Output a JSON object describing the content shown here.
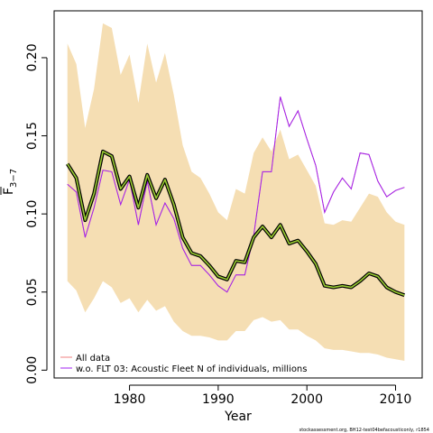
{
  "chart_data": {
    "type": "line",
    "xlabel": "Year",
    "ylabel": "F̄ 3−7",
    "xlim": [
      1971.5,
      2013
    ],
    "ylim": [
      -0.005,
      0.23
    ],
    "xticks": [
      1980,
      1990,
      2000,
      2010
    ],
    "xtick_labels": [
      "1980",
      "1990",
      "2000",
      "2010"
    ],
    "yticks": [
      0.0,
      0.05,
      0.1,
      0.15,
      0.2
    ],
    "ytick_labels": [
      "0.00",
      "0.05",
      "0.10",
      "0.15",
      "0.20"
    ],
    "grid": false,
    "legend_position": "bottom-left",
    "x": [
      1973,
      1974,
      1975,
      1976,
      1977,
      1978,
      1979,
      1980,
      1981,
      1982,
      1983,
      1984,
      1985,
      1986,
      1987,
      1988,
      1989,
      1990,
      1991,
      1992,
      1993,
      1994,
      1995,
      1996,
      1997,
      1998,
      1999,
      2000,
      2001,
      2002,
      2003,
      2004,
      2005,
      2006,
      2007,
      2008,
      2009,
      2010,
      2011
    ],
    "band": {
      "color": "#f5deb3",
      "upper": [
        0.209,
        0.196,
        0.155,
        0.18,
        0.222,
        0.219,
        0.189,
        0.202,
        0.171,
        0.209,
        0.184,
        0.203,
        0.176,
        0.144,
        0.127,
        0.123,
        0.113,
        0.101,
        0.096,
        0.116,
        0.113,
        0.139,
        0.149,
        0.14,
        0.154,
        0.135,
        0.138,
        0.128,
        0.118,
        0.094,
        0.093,
        0.096,
        0.095,
        0.104,
        0.113,
        0.111,
        0.101,
        0.095,
        0.093
      ],
      "lower": [
        0.057,
        0.051,
        0.037,
        0.046,
        0.057,
        0.053,
        0.043,
        0.046,
        0.037,
        0.045,
        0.038,
        0.041,
        0.031,
        0.025,
        0.022,
        0.022,
        0.021,
        0.019,
        0.019,
        0.025,
        0.025,
        0.032,
        0.034,
        0.031,
        0.032,
        0.026,
        0.026,
        0.022,
        0.019,
        0.014,
        0.013,
        0.013,
        0.012,
        0.011,
        0.011,
        0.01,
        0.008,
        0.007,
        0.006
      ]
    },
    "series": [
      {
        "name": "All data",
        "color": "#f08080",
        "values": [
          0.119,
          0.114,
          0.085,
          0.104,
          0.128,
          0.127,
          0.106,
          0.122,
          0.093,
          0.121,
          0.093,
          0.107,
          0.097,
          0.078,
          0.067,
          0.067,
          0.061,
          0.054,
          0.05,
          0.061,
          0.061,
          0.086,
          0.127,
          0.127,
          0.175,
          0.156,
          0.166,
          0.148,
          0.131,
          0.101,
          0.114,
          0.123,
          0.116,
          0.139,
          0.138,
          0.121,
          0.111,
          0.115,
          0.117
        ]
      },
      {
        "name": "w.o. FLT 03: Acoustic Fleet  N of individuals, millions",
        "color": "#a020f0",
        "values": [
          0.119,
          0.114,
          0.085,
          0.104,
          0.128,
          0.127,
          0.106,
          0.122,
          0.093,
          0.121,
          0.093,
          0.107,
          0.097,
          0.078,
          0.067,
          0.067,
          0.061,
          0.054,
          0.05,
          0.061,
          0.061,
          0.086,
          0.127,
          0.127,
          0.175,
          0.156,
          0.166,
          0.148,
          0.131,
          0.101,
          0.114,
          0.123,
          0.116,
          0.139,
          0.138,
          0.121,
          0.111,
          0.115,
          0.117
        ]
      },
      {
        "color": "#9acd32",
        "outline": "#000000",
        "values": [
          0.132,
          0.123,
          0.096,
          0.113,
          0.14,
          0.137,
          0.116,
          0.124,
          0.104,
          0.125,
          0.11,
          0.122,
          0.106,
          0.085,
          0.075,
          0.073,
          0.067,
          0.06,
          0.058,
          0.07,
          0.069,
          0.085,
          0.092,
          0.085,
          0.093,
          0.081,
          0.083,
          0.076,
          0.068,
          0.054,
          0.053,
          0.054,
          0.053,
          0.057,
          0.062,
          0.06,
          0.053,
          0.05,
          0.048
        ]
      }
    ],
    "footer_note": "stockassessment.org, BH12-test04befacousticonly, r1854"
  }
}
